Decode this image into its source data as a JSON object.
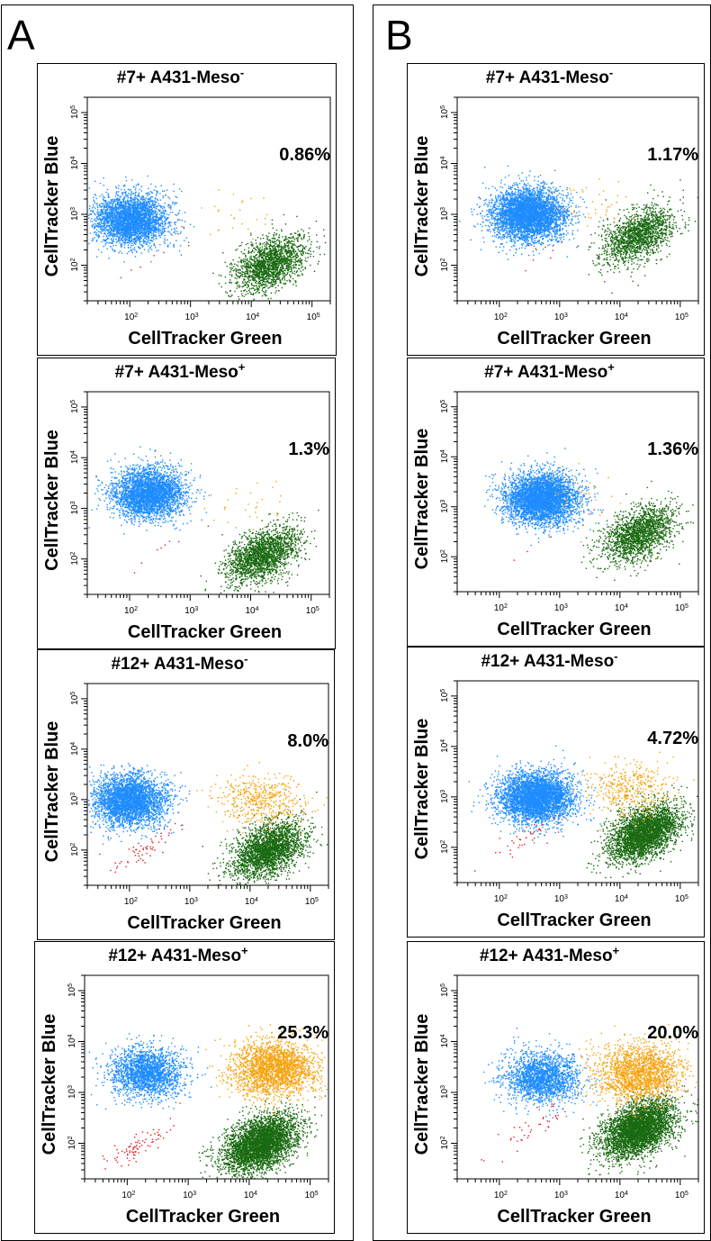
{
  "figure": {
    "panel_label_a": "A",
    "panel_label_b": "B"
  },
  "colors": {
    "blue": "#1e8cff",
    "green": "#1a6a12",
    "orange": "#f5a20c",
    "red": "#e41e1e"
  },
  "chart_data": [
    {
      "id": "A1",
      "column": "A",
      "type": "scatter",
      "title": "#7+ A431-Meso",
      "title_sup": "-",
      "xlabel": "CellTracker Green",
      "ylabel": "CellTracker Blue",
      "x_scale": "log",
      "y_scale": "log",
      "x_tick_labels": [
        "10^2",
        "10^3",
        "10^4",
        "10^5"
      ],
      "y_tick_labels": [
        "10^2",
        "10^3",
        "10^4",
        "10^5"
      ],
      "annotation": "0.86%",
      "populations": [
        {
          "color": "blue",
          "cx": 100,
          "cy": 800,
          "n": 3200
        },
        {
          "color": "green",
          "cx": 20000,
          "cy": 110,
          "n": 1800
        },
        {
          "color": "orange",
          "cx": 8000,
          "cy": 900,
          "n": 25
        },
        {
          "color": "red",
          "cx": 300,
          "cy": 150,
          "n": 8
        }
      ]
    },
    {
      "id": "A2",
      "column": "A",
      "type": "scatter",
      "title": "#7+ A431-Meso",
      "title_sup": "+",
      "xlabel": "CellTracker Green",
      "ylabel": "CellTracker Blue",
      "x_scale": "log",
      "y_scale": "log",
      "x_tick_labels": [
        "10^2",
        "10^3",
        "10^4",
        "10^5"
      ],
      "y_tick_labels": [
        "10^2",
        "10^3",
        "10^4",
        "10^5"
      ],
      "annotation": "1.3%",
      "populations": [
        {
          "color": "blue",
          "cx": 200,
          "cy": 2000,
          "n": 3200
        },
        {
          "color": "green",
          "cx": 15000,
          "cy": 120,
          "n": 2000
        },
        {
          "color": "orange",
          "cx": 8000,
          "cy": 1200,
          "n": 30
        },
        {
          "color": "red",
          "cx": 400,
          "cy": 180,
          "n": 8
        }
      ]
    },
    {
      "id": "A3",
      "column": "A",
      "type": "scatter",
      "title": "#12+ A431-Meso",
      "title_sup": "-",
      "xlabel": "CellTracker Green",
      "ylabel": "CellTracker Blue",
      "x_scale": "log",
      "y_scale": "log",
      "x_tick_labels": [
        "10^2",
        "10^3",
        "10^4",
        "10^5"
      ],
      "y_tick_labels": [
        "10^2",
        "10^3",
        "10^4",
        "10^5"
      ],
      "annotation": "8.0%",
      "populations": [
        {
          "color": "blue",
          "cx": 100,
          "cy": 1000,
          "n": 3200
        },
        {
          "color": "green",
          "cx": 20000,
          "cy": 100,
          "n": 2600
        },
        {
          "color": "orange",
          "cx": 15000,
          "cy": 1000,
          "n": 500
        },
        {
          "color": "red",
          "cx": 200,
          "cy": 130,
          "n": 60
        }
      ]
    },
    {
      "id": "A4",
      "column": "A",
      "type": "scatter",
      "title": "#12+ A431-Meso",
      "title_sup": "+",
      "xlabel": "CellTracker Green",
      "ylabel": "CellTracker Blue",
      "x_scale": "log",
      "y_scale": "log",
      "x_tick_labels": [
        "10^2",
        "10^3",
        "10^4",
        "10^5"
      ],
      "y_tick_labels": [
        "10^2",
        "10^3",
        "10^4",
        "10^5"
      ],
      "annotation": "25.3%",
      "populations": [
        {
          "color": "blue",
          "cx": 200,
          "cy": 2500,
          "n": 2000
        },
        {
          "color": "green",
          "cx": 15000,
          "cy": 100,
          "n": 4000
        },
        {
          "color": "orange",
          "cx": 25000,
          "cy": 3000,
          "n": 2200
        },
        {
          "color": "red",
          "cx": 150,
          "cy": 90,
          "n": 80
        }
      ]
    },
    {
      "id": "B1",
      "column": "B",
      "type": "scatter",
      "title": "#7+ A431-Meso",
      "title_sup": "-",
      "xlabel": "CellTracker Green",
      "ylabel": "CellTracker Blue",
      "x_scale": "log",
      "y_scale": "log",
      "x_tick_labels": [
        "10^2",
        "10^3",
        "10^4",
        "10^5"
      ],
      "y_tick_labels": [
        "10^2",
        "10^3",
        "10^4",
        "10^5"
      ],
      "annotation": "1.17%",
      "populations": [
        {
          "color": "blue",
          "cx": 300,
          "cy": 1000,
          "n": 4200
        },
        {
          "color": "green",
          "cx": 20000,
          "cy": 400,
          "n": 1600
        },
        {
          "color": "orange",
          "cx": 3000,
          "cy": 1500,
          "n": 40
        },
        {
          "color": "red",
          "cx": 600,
          "cy": 200,
          "n": 8
        }
      ]
    },
    {
      "id": "B2",
      "column": "B",
      "type": "scatter",
      "title": "#7+ A431-Meso",
      "title_sup": "+",
      "xlabel": "CellTracker Green",
      "ylabel": "CellTracker Blue",
      "x_scale": "log",
      "y_scale": "log",
      "x_tick_labels": [
        "10^2",
        "10^3",
        "10^4",
        "10^5"
      ],
      "y_tick_labels": [
        "10^2",
        "10^3",
        "10^4",
        "10^5"
      ],
      "annotation": "1.36%",
      "populations": [
        {
          "color": "blue",
          "cx": 500,
          "cy": 1500,
          "n": 4200
        },
        {
          "color": "green",
          "cx": 20000,
          "cy": 300,
          "n": 1800
        },
        {
          "color": "orange",
          "cx": 2000,
          "cy": 2000,
          "n": 30
        },
        {
          "color": "red",
          "cx": 800,
          "cy": 300,
          "n": 5
        }
      ]
    },
    {
      "id": "B3",
      "column": "B",
      "type": "scatter",
      "title": "#12+ A431-Meso",
      "title_sup": "-",
      "xlabel": "CellTracker Green",
      "ylabel": "CellTracker Blue",
      "x_scale": "log",
      "y_scale": "log",
      "x_tick_labels": [
        "10^2",
        "10^3",
        "10^4",
        "10^5"
      ],
      "y_tick_labels": [
        "10^2",
        "10^3",
        "10^4",
        "10^5"
      ],
      "annotation": "4.72%",
      "populations": [
        {
          "color": "blue",
          "cx": 400,
          "cy": 1000,
          "n": 4000
        },
        {
          "color": "green",
          "cx": 25000,
          "cy": 200,
          "n": 3200
        },
        {
          "color": "orange",
          "cx": 15000,
          "cy": 1500,
          "n": 400
        },
        {
          "color": "red",
          "cx": 300,
          "cy": 180,
          "n": 40
        }
      ]
    },
    {
      "id": "B4",
      "column": "B",
      "type": "scatter",
      "title": "#12+ A431-Meso",
      "title_sup": "+",
      "xlabel": "CellTracker Green",
      "ylabel": "CellTracker Blue",
      "x_scale": "log",
      "y_scale": "log",
      "x_tick_labels": [
        "10^2",
        "10^3",
        "10^4",
        "10^5"
      ],
      "y_tick_labels": [
        "10^2",
        "10^3",
        "10^4",
        "10^5"
      ],
      "annotation": "20.0%",
      "populations": [
        {
          "color": "blue",
          "cx": 500,
          "cy": 2000,
          "n": 2000
        },
        {
          "color": "green",
          "cx": 20000,
          "cy": 200,
          "n": 4000
        },
        {
          "color": "orange",
          "cx": 20000,
          "cy": 2500,
          "n": 1800
        },
        {
          "color": "red",
          "cx": 300,
          "cy": 180,
          "n": 40
        }
      ]
    }
  ]
}
